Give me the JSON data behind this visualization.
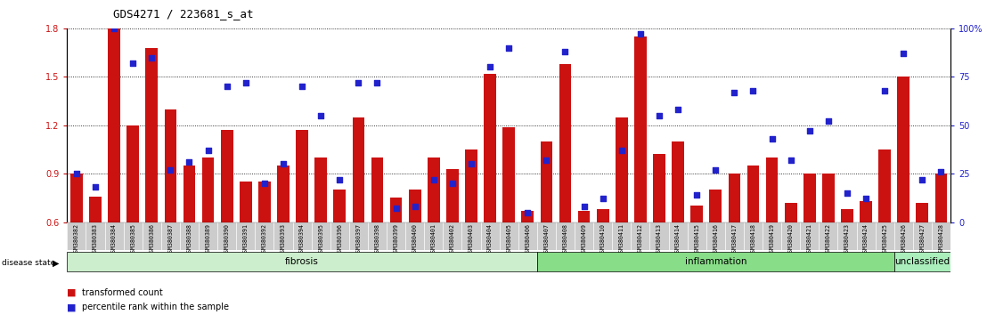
{
  "title": "GDS4271 / 223681_s_at",
  "samples": [
    "GSM380382",
    "GSM380383",
    "GSM380384",
    "GSM380385",
    "GSM380386",
    "GSM380387",
    "GSM380388",
    "GSM380389",
    "GSM380390",
    "GSM380391",
    "GSM380392",
    "GSM380393",
    "GSM380394",
    "GSM380395",
    "GSM380396",
    "GSM380397",
    "GSM380398",
    "GSM380399",
    "GSM380400",
    "GSM380401",
    "GSM380402",
    "GSM380403",
    "GSM380404",
    "GSM380405",
    "GSM380406",
    "GSM380407",
    "GSM380408",
    "GSM380409",
    "GSM380410",
    "GSM380411",
    "GSM380412",
    "GSM380413",
    "GSM380414",
    "GSM380415",
    "GSM380416",
    "GSM380417",
    "GSM380418",
    "GSM380419",
    "GSM380420",
    "GSM380421",
    "GSM380422",
    "GSM380423",
    "GSM380424",
    "GSM380425",
    "GSM380426",
    "GSM380427",
    "GSM380428"
  ],
  "bar_values": [
    0.9,
    0.76,
    1.8,
    1.2,
    1.68,
    1.3,
    0.95,
    1.0,
    1.17,
    0.85,
    0.85,
    0.95,
    1.17,
    1.0,
    0.8,
    1.25,
    1.0,
    0.75,
    0.8,
    1.0,
    0.93,
    1.05,
    1.52,
    1.19,
    0.67,
    1.1,
    1.58,
    0.67,
    0.68,
    1.25,
    1.75,
    1.02,
    1.1,
    0.7,
    0.8,
    0.9,
    0.95,
    1.0,
    0.72,
    0.9,
    0.9,
    0.68,
    0.73,
    1.05,
    1.5,
    0.72,
    0.9
  ],
  "dot_values_pct": [
    25,
    18,
    100,
    82,
    85,
    27,
    31,
    37,
    70,
    72,
    20,
    30,
    70,
    55,
    22,
    72,
    72,
    7,
    8,
    22,
    20,
    30,
    80,
    90,
    5,
    32,
    88,
    8,
    12,
    37,
    97,
    55,
    58,
    14,
    27,
    67,
    68,
    43,
    32,
    47,
    52,
    15,
    12,
    68,
    87,
    22,
    26
  ],
  "disease_state": [
    "fibrosis",
    "fibrosis",
    "fibrosis",
    "fibrosis",
    "fibrosis",
    "fibrosis",
    "fibrosis",
    "fibrosis",
    "fibrosis",
    "fibrosis",
    "fibrosis",
    "fibrosis",
    "fibrosis",
    "fibrosis",
    "fibrosis",
    "fibrosis",
    "fibrosis",
    "fibrosis",
    "fibrosis",
    "fibrosis",
    "fibrosis",
    "fibrosis",
    "fibrosis",
    "fibrosis",
    "fibrosis",
    "inflammation",
    "inflammation",
    "inflammation",
    "inflammation",
    "inflammation",
    "inflammation",
    "inflammation",
    "inflammation",
    "inflammation",
    "inflammation",
    "inflammation",
    "inflammation",
    "inflammation",
    "inflammation",
    "inflammation",
    "inflammation",
    "inflammation",
    "inflammation",
    "inflammation",
    "unclassified",
    "unclassified",
    "unclassified"
  ],
  "ymin": 0.6,
  "ymax": 1.8,
  "yticks": [
    0.6,
    0.9,
    1.2,
    1.5,
    1.8
  ],
  "right_yticks_pct": [
    0,
    25,
    50,
    75,
    100
  ],
  "bar_color": "#cc1111",
  "dot_color": "#2222cc",
  "fibrosis_color": "#cceecc",
  "inflammation_color": "#88dd88",
  "unclassified_color": "#aaeebb",
  "tick_bg_color": "#cccccc",
  "legend_bar_label": "transformed count",
  "legend_dot_label": "percentile rank within the sample"
}
